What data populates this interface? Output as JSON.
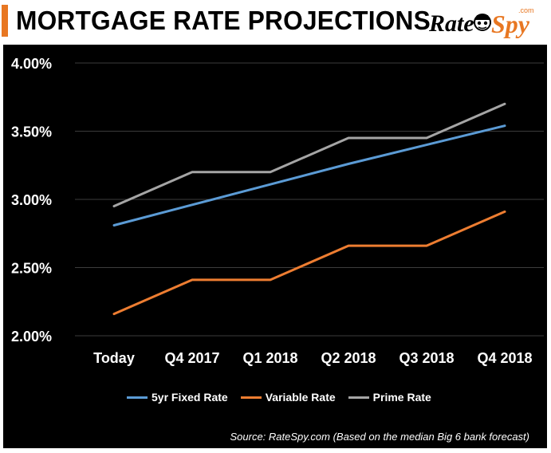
{
  "header": {
    "title": "MORTGAGE RATE PROJECTIONS",
    "accent_color": "#e87722",
    "logo": {
      "text_rate": "Rate",
      "text_spy": "Spy",
      "text_com": ".com",
      "rate_color": "#000000",
      "spy_color": "#e87722",
      "icon": "spy-mascot-icon"
    }
  },
  "chart_data": {
    "type": "line",
    "background": "#000000",
    "categories": [
      "Today",
      "Q4 2017",
      "Q1 2018",
      "Q2 2018",
      "Q3 2018",
      "Q4 2018"
    ],
    "series": [
      {
        "name": "5yr Fixed Rate",
        "color": "#5b9bd5",
        "values": [
          2.81,
          2.96,
          3.11,
          3.26,
          3.4,
          3.54
        ]
      },
      {
        "name": "Variable Rate",
        "color": "#ed7d31",
        "values": [
          2.16,
          2.41,
          2.41,
          2.66,
          2.66,
          2.91
        ]
      },
      {
        "name": "Prime Rate",
        "color": "#a5a5a5",
        "values": [
          2.95,
          3.2,
          3.2,
          3.45,
          3.45,
          3.7
        ]
      }
    ],
    "yticks": [
      {
        "value": 4.0,
        "label": "4.00%"
      },
      {
        "value": 3.5,
        "label": "3.50%"
      },
      {
        "value": 3.0,
        "label": "3.00%"
      },
      {
        "value": 2.5,
        "label": "2.50%"
      },
      {
        "value": 2.0,
        "label": "2.00%"
      }
    ],
    "ylim": [
      2.0,
      4.0
    ],
    "grid": true,
    "legend_position": "bottom",
    "source": "Source: RateSpy.com (Based on the median Big 6 bank forecast)"
  }
}
